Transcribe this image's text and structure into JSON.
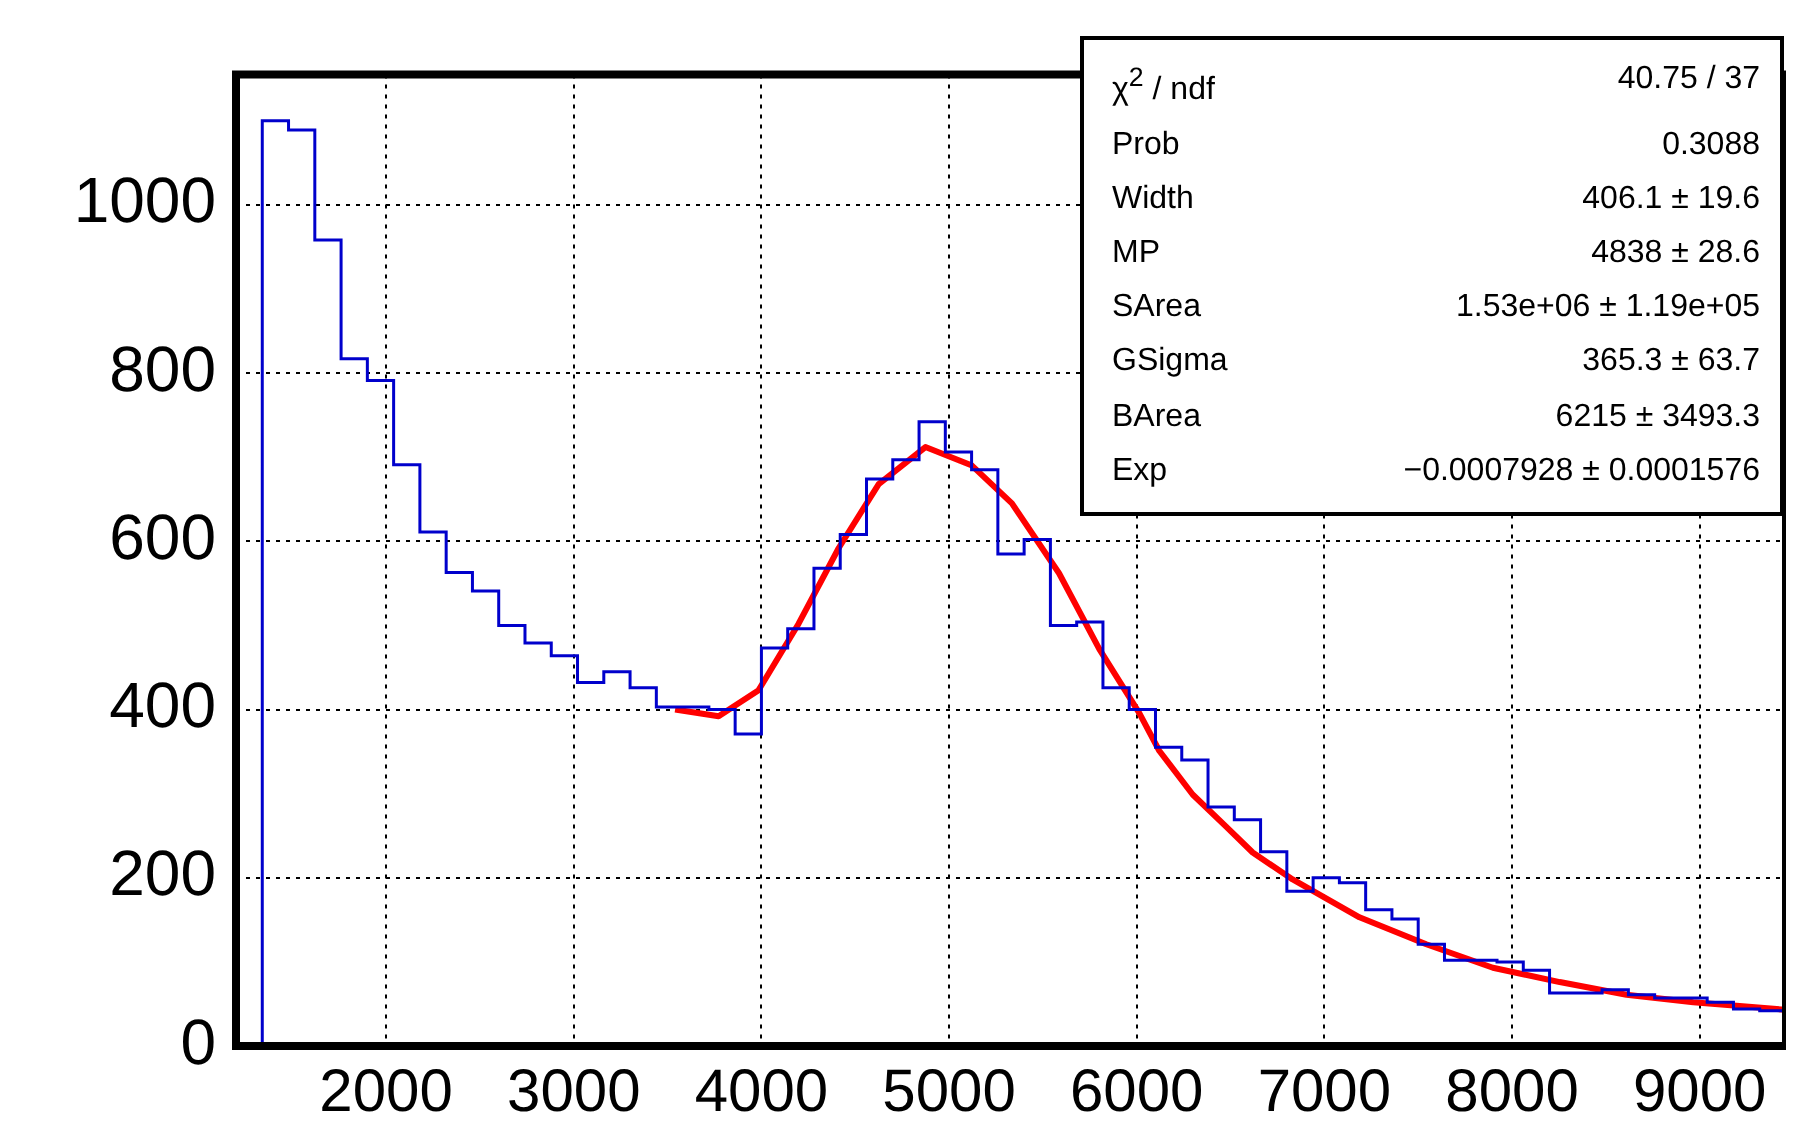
{
  "chart_data": {
    "type": "histogram",
    "color": "#0000cc",
    "bins": [
      1200,
      1340,
      1480,
      1620,
      1760,
      1900,
      2040,
      2180,
      2320,
      2460,
      2600,
      2740,
      2880,
      3020,
      3160,
      3300,
      3440,
      3580,
      3720,
      3860,
      4000,
      4140,
      4280,
      4420,
      4560,
      4700,
      4840,
      4980,
      5120,
      5260,
      5400,
      5540,
      5680,
      5820,
      5960,
      6100,
      6240,
      6380,
      6520,
      6660,
      6800,
      6940,
      7080,
      7220,
      7360,
      7500,
      7640,
      7780,
      7920,
      8060,
      8200,
      8340,
      8480,
      8620,
      8760,
      8900,
      9040,
      9180,
      9320,
      9460
    ],
    "values": [
      0,
      1100,
      1089,
      958,
      817,
      791,
      691,
      611,
      563,
      541,
      500,
      479,
      464,
      432,
      445,
      426,
      403,
      403,
      400,
      371,
      473,
      496,
      568,
      608,
      674,
      697,
      742,
      706,
      685,
      585,
      602,
      500,
      504,
      426,
      400,
      355,
      340,
      284,
      269,
      231,
      184,
      200,
      194,
      162,
      151,
      121,
      102,
      102,
      100,
      90,
      63,
      63,
      67,
      61,
      57,
      57,
      52,
      44,
      42
    ],
    "series": [
      {
        "type": "line",
        "color": "#ff0000",
        "x": [
          3540,
          3772,
          3985,
          4198,
          4412,
          4625,
          4874,
          5122,
          5335,
          5586,
          5800,
          6013,
          6120,
          6298,
          6475,
          6618,
          6831,
          7187,
          7543,
          7898,
          8254,
          8610,
          8966,
          9460
        ],
        "values": [
          400,
          392,
          423,
          502,
          592,
          668,
          712,
          690,
          645,
          562,
          472,
          396,
          351,
          299,
          261,
          230,
          198,
          153,
          121,
          93,
          76,
          61,
          52,
          43
        ]
      }
    ],
    "xlim": [
      1200,
      9460
    ],
    "ylim": [
      0,
      1155
    ],
    "xticks": [
      2000,
      3000,
      4000,
      5000,
      6000,
      7000,
      8000,
      9000
    ],
    "yticks": [
      0,
      200,
      400,
      600,
      800,
      1000
    ],
    "grid": true,
    "legend": false,
    "annotations": [
      "χ$^{2}$ / ndf",
      "40.75 / 37",
      "Prob",
      "0.3088",
      "Width",
      "406.1 ± 19.6",
      "MP",
      "4838 ± 28.6",
      "SArea",
      "1.53e+06 ± 1.19e+05",
      "GSigma",
      "365.3 ± 63.7",
      "BArea",
      "6215 ± 3493.3",
      "Exp",
      "−0.0007928 ± 0.0001576"
    ]
  }
}
